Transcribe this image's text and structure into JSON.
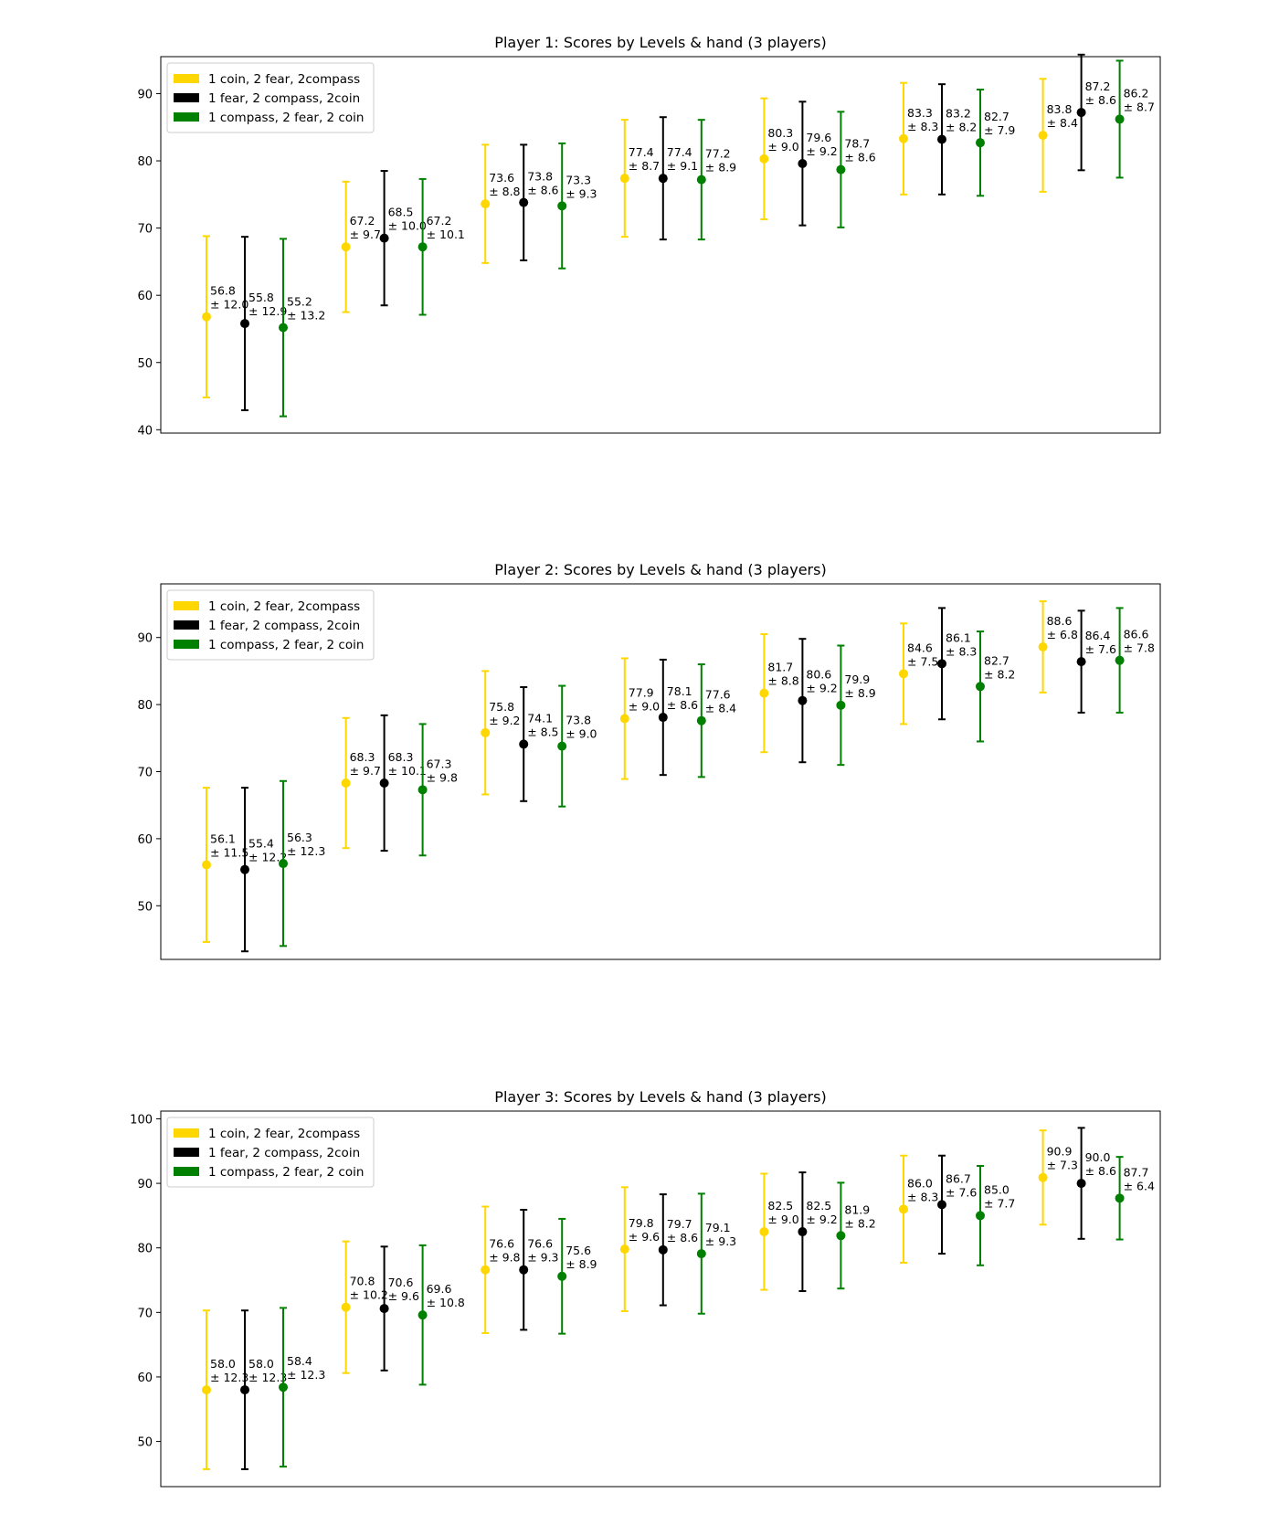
{
  "legend": [
    "1 coin, 2 fear, 2compass",
    "1 fear, 2 compass, 2coin",
    "1 compass, 2 fear, 2 coin"
  ],
  "colors": [
    "#FFD700",
    "#000000",
    "#008000"
  ],
  "chart_data": [
    {
      "type": "scatter",
      "title": "Player 1: Scores by Levels & hand (3 players)",
      "xlabel": "",
      "ylabel": "",
      "ylim": [
        39.5,
        95.5
      ],
      "yticks": [
        40,
        50,
        60,
        70,
        80,
        90
      ],
      "legend_position": "top-left",
      "grid": false,
      "groups": 7,
      "series": [
        {
          "name": "1 coin, 2 fear, 2compass",
          "color": "#FFD700",
          "values": [
            56.8,
            67.2,
            73.6,
            77.4,
            80.3,
            83.3,
            83.8
          ],
          "errors": [
            12.0,
            9.7,
            8.8,
            8.7,
            9.0,
            8.3,
            8.4
          ]
        },
        {
          "name": "1 fear, 2 compass, 2coin",
          "color": "#000000",
          "values": [
            55.8,
            68.5,
            73.8,
            77.4,
            79.6,
            83.2,
            87.2
          ],
          "errors": [
            12.9,
            10.0,
            8.6,
            9.1,
            9.2,
            8.2,
            8.6
          ]
        },
        {
          "name": "1 compass, 2 fear, 2 coin",
          "color": "#008000",
          "values": [
            55.2,
            67.2,
            73.3,
            77.2,
            78.7,
            82.7,
            86.2
          ],
          "errors": [
            13.2,
            10.1,
            9.3,
            8.9,
            8.6,
            7.9,
            8.7
          ]
        }
      ]
    },
    {
      "type": "scatter",
      "title": "Player 2: Scores by Levels & hand (3 players)",
      "xlabel": "",
      "ylabel": "",
      "ylim": [
        42,
        98
      ],
      "yticks": [
        50,
        60,
        70,
        80,
        90
      ],
      "legend_position": "top-left",
      "grid": false,
      "groups": 7,
      "series": [
        {
          "name": "1 coin, 2 fear, 2compass",
          "color": "#FFD700",
          "values": [
            56.1,
            68.3,
            75.8,
            77.9,
            81.7,
            84.6,
            88.6
          ],
          "errors": [
            11.5,
            9.7,
            9.2,
            9.0,
            8.8,
            7.5,
            6.8
          ]
        },
        {
          "name": "1 fear, 2 compass, 2coin",
          "color": "#000000",
          "values": [
            55.4,
            68.3,
            74.1,
            78.1,
            80.6,
            86.1,
            86.4
          ],
          "errors": [
            12.2,
            10.1,
            8.5,
            8.6,
            9.2,
            8.3,
            7.6
          ]
        },
        {
          "name": "1 compass, 2 fear, 2 coin",
          "color": "#008000",
          "values": [
            56.3,
            67.3,
            73.8,
            77.6,
            79.9,
            82.7,
            86.6
          ],
          "errors": [
            12.3,
            9.8,
            9.0,
            8.4,
            8.9,
            8.2,
            7.8
          ]
        }
      ]
    },
    {
      "type": "scatter",
      "title": "Player 3: Scores by Levels & hand (3 players)",
      "xlabel": "",
      "ylabel": "",
      "ylim": [
        43,
        101.2
      ],
      "yticks": [
        50,
        60,
        70,
        80,
        90,
        100
      ],
      "legend_position": "top-left",
      "grid": false,
      "groups": 7,
      "series": [
        {
          "name": "1 coin, 2 fear, 2compass",
          "color": "#FFD700",
          "values": [
            58.0,
            70.8,
            76.6,
            79.8,
            82.5,
            86.0,
            90.9
          ],
          "errors": [
            12.3,
            10.2,
            9.8,
            9.6,
            9.0,
            8.3,
            7.3
          ]
        },
        {
          "name": "1 fear, 2 compass, 2coin",
          "color": "#000000",
          "values": [
            58.0,
            70.6,
            76.6,
            79.7,
            82.5,
            86.7,
            90.0
          ],
          "errors": [
            12.3,
            9.6,
            9.3,
            8.6,
            9.2,
            7.6,
            8.6
          ]
        },
        {
          "name": "1 compass, 2 fear, 2 coin",
          "color": "#008000",
          "values": [
            58.4,
            69.6,
            75.6,
            79.1,
            81.9,
            85.0,
            87.7
          ],
          "errors": [
            12.3,
            10.8,
            8.9,
            9.3,
            8.2,
            7.7,
            6.4
          ]
        }
      ]
    }
  ]
}
